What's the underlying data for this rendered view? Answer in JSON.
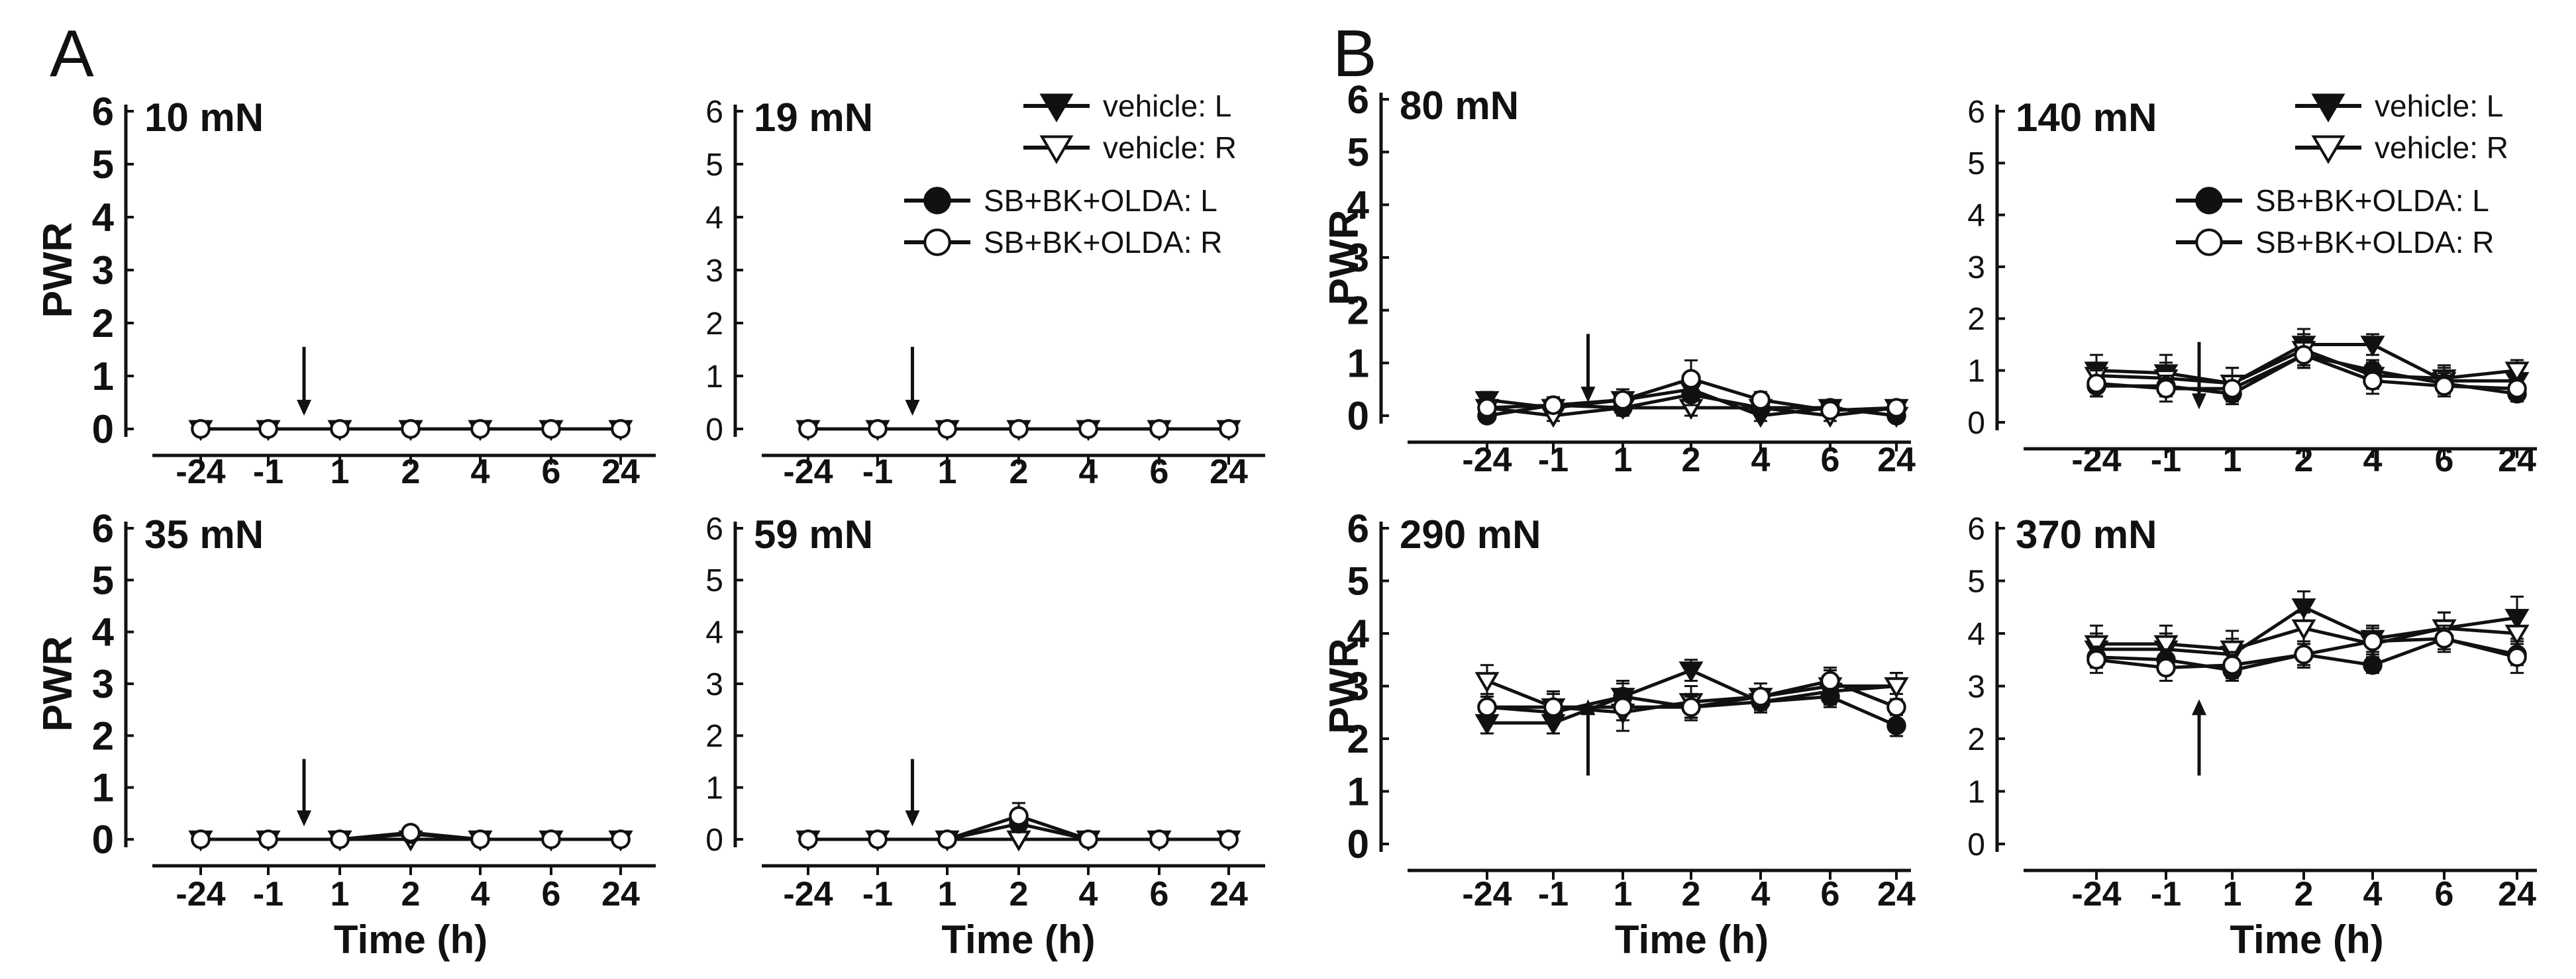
{
  "figure": {
    "panel_letters": [
      "A",
      "B"
    ],
    "ylabel": "PWR",
    "xlabel": "Time (h)",
    "legend": [
      {
        "label": "vehicle: L",
        "marker": "triangle-down",
        "filled": true
      },
      {
        "label": "vehicle: R",
        "marker": "triangle-down",
        "filled": false
      },
      {
        "label": "SB+BK+OLDA: L",
        "marker": "circle",
        "filled": true
      },
      {
        "label": "SB+BK+OLDA: R",
        "marker": "circle",
        "filled": false
      }
    ],
    "arrow_color": "#111111"
  },
  "chart_data": [
    {
      "type": "line",
      "panel": "A",
      "title": "10 mN",
      "categories": [
        "-24",
        "-1",
        "1",
        "2",
        "4",
        "6",
        "24"
      ],
      "ylim": [
        0,
        6
      ],
      "yticks": [
        0,
        1,
        2,
        3,
        4,
        5,
        6
      ],
      "arrow": "down",
      "series": [
        {
          "name": "vehicle: L",
          "values": [
            0,
            0,
            0,
            0,
            0,
            0,
            0
          ],
          "err": [
            0,
            0,
            0,
            0,
            0,
            0,
            0
          ]
        },
        {
          "name": "vehicle: R",
          "values": [
            0,
            0,
            0,
            0,
            0,
            0,
            0
          ],
          "err": [
            0,
            0,
            0,
            0,
            0,
            0,
            0
          ]
        },
        {
          "name": "SB+BK+OLDA: L",
          "values": [
            0,
            0,
            0,
            0,
            0,
            0,
            0
          ],
          "err": [
            0,
            0,
            0,
            0,
            0,
            0,
            0
          ]
        },
        {
          "name": "SB+BK+OLDA: R",
          "values": [
            0,
            0,
            0,
            0,
            0,
            0,
            0
          ],
          "err": [
            0,
            0,
            0,
            0,
            0,
            0,
            0
          ]
        }
      ]
    },
    {
      "type": "line",
      "panel": "A",
      "title": "19 mN",
      "categories": [
        "-24",
        "-1",
        "1",
        "2",
        "4",
        "6",
        "24"
      ],
      "ylim": [
        0,
        6
      ],
      "yticks": [
        0,
        1,
        2,
        3,
        4,
        5,
        6
      ],
      "arrow": "down",
      "legend": true,
      "series": [
        {
          "name": "vehicle: L",
          "values": [
            0,
            0,
            0,
            0,
            0,
            0,
            0
          ],
          "err": [
            0,
            0,
            0,
            0,
            0,
            0,
            0
          ]
        },
        {
          "name": "vehicle: R",
          "values": [
            0,
            0,
            0,
            0,
            0,
            0,
            0
          ],
          "err": [
            0,
            0,
            0,
            0,
            0,
            0,
            0
          ]
        },
        {
          "name": "SB+BK+OLDA: L",
          "values": [
            0,
            0,
            0,
            0,
            0,
            0,
            0
          ],
          "err": [
            0,
            0,
            0,
            0,
            0,
            0,
            0
          ]
        },
        {
          "name": "SB+BK+OLDA: R",
          "values": [
            0,
            0,
            0,
            0,
            0,
            0,
            0
          ],
          "err": [
            0,
            0,
            0,
            0,
            0,
            0,
            0
          ]
        }
      ]
    },
    {
      "type": "line",
      "panel": "A",
      "title": "35 mN",
      "categories": [
        "-24",
        "-1",
        "1",
        "2",
        "4",
        "6",
        "24"
      ],
      "ylim": [
        0,
        6
      ],
      "yticks": [
        0,
        1,
        2,
        3,
        4,
        5,
        6
      ],
      "arrow": "down",
      "series": [
        {
          "name": "vehicle: L",
          "values": [
            0,
            0,
            0,
            0,
            0,
            0,
            0
          ],
          "err": [
            0,
            0,
            0,
            0,
            0,
            0,
            0
          ]
        },
        {
          "name": "vehicle: R",
          "values": [
            0,
            0,
            0,
            0,
            0,
            0,
            0
          ],
          "err": [
            0,
            0,
            0,
            0,
            0,
            0,
            0
          ]
        },
        {
          "name": "SB+BK+OLDA: L",
          "values": [
            0,
            0,
            0,
            0.1,
            0,
            0,
            0
          ],
          "err": [
            0,
            0,
            0,
            0.08,
            0,
            0,
            0
          ]
        },
        {
          "name": "SB+BK+OLDA: R",
          "values": [
            0,
            0,
            0,
            0.13,
            0,
            0,
            0
          ],
          "err": [
            0,
            0,
            0,
            0.1,
            0,
            0,
            0
          ]
        }
      ]
    },
    {
      "type": "line",
      "panel": "A",
      "title": "59 mN",
      "categories": [
        "-24",
        "-1",
        "1",
        "2",
        "4",
        "6",
        "24"
      ],
      "ylim": [
        0,
        6
      ],
      "yticks": [
        0,
        1,
        2,
        3,
        4,
        5,
        6
      ],
      "arrow": "down",
      "series": [
        {
          "name": "vehicle: L",
          "values": [
            0,
            0,
            0,
            0,
            0,
            0,
            0
          ],
          "err": [
            0,
            0,
            0,
            0,
            0,
            0,
            0
          ]
        },
        {
          "name": "vehicle: R",
          "values": [
            0,
            0,
            0,
            0,
            0,
            0,
            0
          ],
          "err": [
            0,
            0,
            0,
            0,
            0,
            0,
            0
          ]
        },
        {
          "name": "SB+BK+OLDA: L",
          "values": [
            0,
            0,
            0,
            0.3,
            0,
            0,
            0
          ],
          "err": [
            0,
            0,
            0,
            0.15,
            0,
            0,
            0
          ]
        },
        {
          "name": "SB+BK+OLDA: R",
          "values": [
            0,
            0,
            0,
            0.45,
            0,
            0,
            0
          ],
          "err": [
            0,
            0,
            0,
            0.25,
            0,
            0,
            0
          ]
        }
      ]
    },
    {
      "type": "line",
      "panel": "B",
      "title": "80 mN",
      "categories": [
        "-24",
        "-1",
        "1",
        "2",
        "4",
        "6",
        "24"
      ],
      "ylim": [
        0,
        6
      ],
      "yticks": [
        0,
        1,
        2,
        3,
        4,
        5,
        6
      ],
      "arrow": "down",
      "series": [
        {
          "name": "vehicle: L",
          "values": [
            0.3,
            0.15,
            0.3,
            0.5,
            0,
            0.15,
            0
          ],
          "err": [
            0.15,
            0.15,
            0.15,
            0.2,
            0.1,
            0.12,
            0.1
          ]
        },
        {
          "name": "vehicle: R",
          "values": [
            0.15,
            0,
            0.15,
            0.15,
            0.15,
            0,
            0.15
          ],
          "err": [
            0.1,
            0.1,
            0.1,
            0.15,
            0.1,
            0.1,
            0.12
          ]
        },
        {
          "name": "SB+BK+OLDA: L",
          "values": [
            0,
            0.2,
            0.15,
            0.4,
            0.15,
            0.15,
            0
          ],
          "err": [
            0.1,
            0.15,
            0.15,
            0.2,
            0.1,
            0.1,
            0.1
          ]
        },
        {
          "name": "SB+BK+OLDA: R",
          "values": [
            0.15,
            0.2,
            0.3,
            0.7,
            0.3,
            0.1,
            0.15
          ],
          "err": [
            0.15,
            0.15,
            0.2,
            0.35,
            0.15,
            0.1,
            0.12
          ]
        }
      ]
    },
    {
      "type": "line",
      "panel": "B",
      "title": "140 mN",
      "categories": [
        "-24",
        "-1",
        "1",
        "2",
        "4",
        "6",
        "24"
      ],
      "ylim": [
        0,
        6
      ],
      "yticks": [
        0,
        1,
        2,
        3,
        4,
        5,
        6
      ],
      "arrow": "down",
      "legend": true,
      "series": [
        {
          "name": "vehicle: L",
          "values": [
            1.0,
            0.95,
            0.75,
            1.5,
            1.5,
            0.8,
            0.8
          ],
          "err": [
            0.3,
            0.35,
            0.3,
            0.3,
            0.2,
            0.25,
            0.2
          ]
        },
        {
          "name": "vehicle: R",
          "values": [
            0.9,
            0.85,
            0.75,
            1.4,
            0.9,
            0.85,
            1.0
          ],
          "err": [
            0.25,
            0.3,
            0.3,
            0.3,
            0.25,
            0.25,
            0.2
          ]
        },
        {
          "name": "SB+BK+OLDA: L",
          "values": [
            0.7,
            0.7,
            0.55,
            1.3,
            1.0,
            0.75,
            0.55
          ],
          "err": [
            0.2,
            0.2,
            0.2,
            0.25,
            0.2,
            0.2,
            0.15
          ]
        },
        {
          "name": "SB+BK+OLDA: R",
          "values": [
            0.75,
            0.65,
            0.65,
            1.3,
            0.8,
            0.7,
            0.65
          ],
          "err": [
            0.25,
            0.25,
            0.25,
            0.25,
            0.25,
            0.2,
            0.2
          ]
        }
      ]
    },
    {
      "type": "line",
      "panel": "B",
      "title": "290 mN",
      "categories": [
        "-24",
        "-1",
        "1",
        "2",
        "4",
        "6",
        "24"
      ],
      "ylim": [
        0,
        6
      ],
      "yticks": [
        0,
        1,
        2,
        3,
        4,
        5,
        6
      ],
      "arrow": "up",
      "series": [
        {
          "name": "vehicle: L",
          "values": [
            2.3,
            2.3,
            2.8,
            3.3,
            2.7,
            2.9,
            3.0
          ],
          "err": [
            0.2,
            0.2,
            0.3,
            0.2,
            0.2,
            0.25,
            0.25
          ]
        },
        {
          "name": "vehicle: R",
          "values": [
            3.1,
            2.6,
            2.5,
            2.7,
            2.8,
            3.0,
            3.0
          ],
          "err": [
            0.3,
            0.3,
            0.35,
            0.3,
            0.25,
            0.3,
            0.25
          ]
        },
        {
          "name": "SB+BK+OLDA: L",
          "values": [
            2.6,
            2.5,
            2.8,
            2.6,
            2.7,
            2.8,
            2.25
          ],
          "err": [
            0.2,
            0.2,
            0.25,
            0.2,
            0.2,
            0.2,
            0.2
          ]
        },
        {
          "name": "SB+BK+OLDA: R",
          "values": [
            2.6,
            2.6,
            2.6,
            2.6,
            2.8,
            3.1,
            2.6
          ],
          "err": [
            0.25,
            0.25,
            0.25,
            0.25,
            0.25,
            0.25,
            0.25
          ]
        }
      ]
    },
    {
      "type": "line",
      "panel": "B",
      "title": "370 mN",
      "categories": [
        "-24",
        "-1",
        "1",
        "2",
        "4",
        "6",
        "24"
      ],
      "ylim": [
        0,
        6
      ],
      "yticks": [
        0,
        1,
        2,
        3,
        4,
        5,
        6
      ],
      "arrow": "up",
      "series": [
        {
          "name": "vehicle: L",
          "values": [
            3.7,
            3.7,
            3.6,
            4.5,
            3.9,
            4.1,
            4.3
          ],
          "err": [
            0.3,
            0.3,
            0.3,
            0.3,
            0.25,
            0.3,
            0.4
          ]
        },
        {
          "name": "vehicle: R",
          "values": [
            3.8,
            3.8,
            3.7,
            4.1,
            3.8,
            4.1,
            4.0
          ],
          "err": [
            0.35,
            0.35,
            0.35,
            0.3,
            0.3,
            0.3,
            0.35
          ]
        },
        {
          "name": "SB+BK+OLDA: L",
          "values": [
            3.55,
            3.5,
            3.3,
            3.6,
            3.4,
            3.9,
            3.6
          ],
          "err": [
            0.2,
            0.2,
            0.2,
            0.2,
            0.15,
            0.2,
            0.2
          ]
        },
        {
          "name": "SB+BK+OLDA: R",
          "values": [
            3.5,
            3.35,
            3.4,
            3.6,
            3.85,
            3.9,
            3.55
          ],
          "err": [
            0.25,
            0.25,
            0.25,
            0.25,
            0.25,
            0.25,
            0.3
          ]
        }
      ]
    }
  ]
}
